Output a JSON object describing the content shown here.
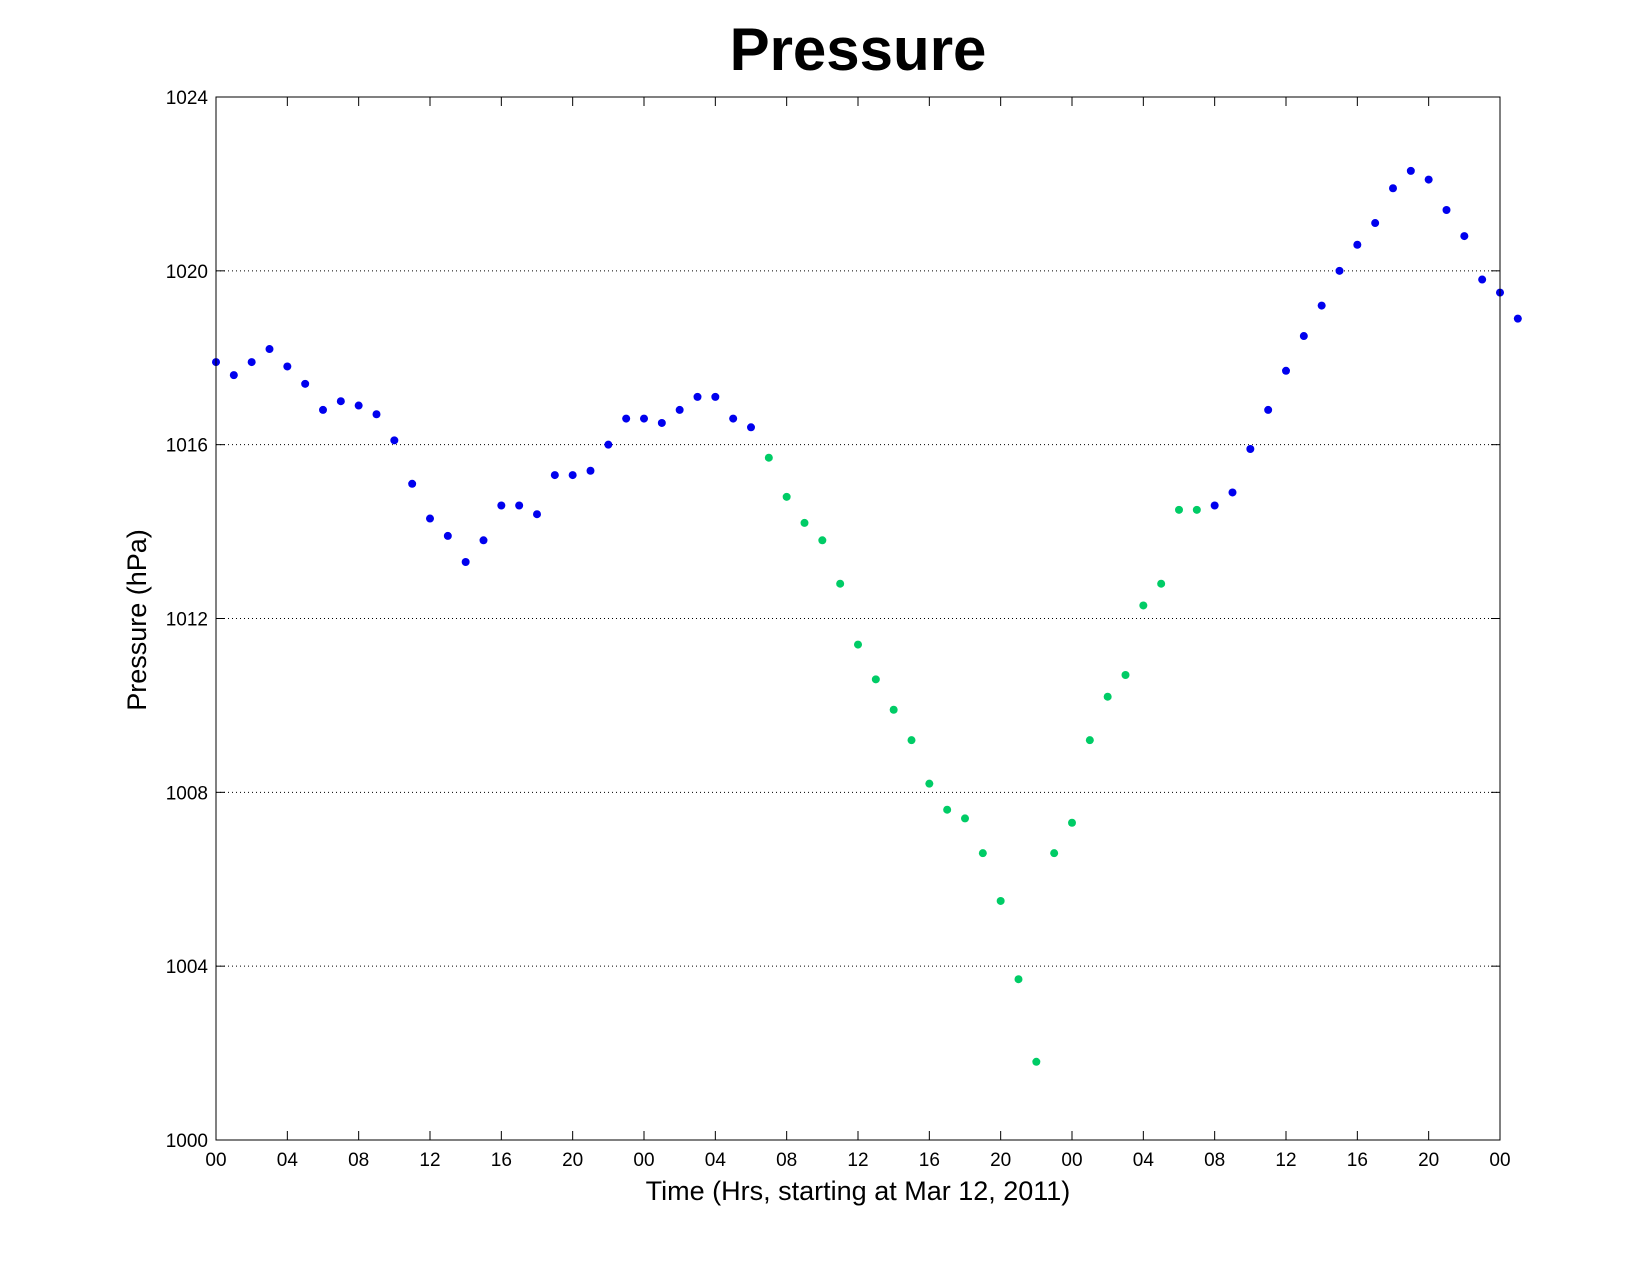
{
  "chart_data": {
    "type": "scatter",
    "title": "Pressure",
    "xlabel": "Time (Hrs, starting at Mar 12, 2011)",
    "ylabel": "Pressure (hPa)",
    "xlim": [
      0,
      72
    ],
    "ylim": [
      1000,
      1024
    ],
    "x_ticks": [
      0,
      4,
      8,
      12,
      16,
      20,
      24,
      28,
      32,
      36,
      40,
      44,
      48,
      52,
      56,
      60,
      64,
      68,
      72
    ],
    "x_tick_labels": [
      "00",
      "04",
      "08",
      "12",
      "16",
      "20",
      "00",
      "04",
      "08",
      "12",
      "16",
      "20",
      "00",
      "04",
      "08",
      "12",
      "16",
      "20",
      "00"
    ],
    "y_ticks": [
      1000,
      1004,
      1008,
      1012,
      1016,
      1020,
      1024
    ],
    "y_tick_labels": [
      "1000",
      "1004",
      "1008",
      "1012",
      "1016",
      "1020",
      "1024"
    ],
    "grid": "horizontal dotted",
    "colors": {
      "series_1": "#0000ee",
      "series_2": "#00cc66"
    },
    "series": [
      {
        "color": "#0000ee",
        "points": [
          [
            0,
            1017.9
          ],
          [
            1,
            1017.6
          ],
          [
            2,
            1017.9
          ],
          [
            3,
            1018.2
          ],
          [
            4,
            1017.8
          ],
          [
            5,
            1017.4
          ],
          [
            6,
            1016.8
          ],
          [
            7,
            1017.0
          ],
          [
            8,
            1016.9
          ],
          [
            9,
            1016.7
          ],
          [
            10,
            1016.1
          ],
          [
            11,
            1015.1
          ],
          [
            12,
            1014.3
          ],
          [
            13,
            1013.9
          ],
          [
            14,
            1013.3
          ],
          [
            15,
            1013.8
          ],
          [
            16,
            1014.6
          ],
          [
            17,
            1014.6
          ],
          [
            18,
            1014.4
          ],
          [
            19,
            1015.3
          ],
          [
            20,
            1015.3
          ],
          [
            21,
            1015.4
          ],
          [
            22,
            1016.0
          ],
          [
            23,
            1016.6
          ],
          [
            24,
            1016.6
          ],
          [
            25,
            1016.5
          ],
          [
            26,
            1016.8
          ],
          [
            27,
            1017.1
          ],
          [
            28,
            1017.1
          ],
          [
            29,
            1016.6
          ],
          [
            30,
            1016.4
          ],
          [
            56,
            1014.6
          ],
          [
            57,
            1014.9
          ],
          [
            58,
            1015.9
          ],
          [
            59,
            1016.8
          ],
          [
            60,
            1017.7
          ],
          [
            61,
            1018.5
          ],
          [
            62,
            1019.2
          ],
          [
            63,
            1020.0
          ],
          [
            64,
            1020.6
          ],
          [
            65,
            1021.1
          ],
          [
            66,
            1021.9
          ],
          [
            67,
            1022.3
          ],
          [
            68,
            1022.1
          ],
          [
            69,
            1021.4
          ],
          [
            70,
            1020.8
          ],
          [
            71,
            1019.8
          ],
          [
            72,
            1019.5
          ],
          [
            73,
            1018.9
          ]
        ]
      },
      {
        "color": "#00cc66",
        "points": [
          [
            31,
            1015.7
          ],
          [
            32,
            1014.8
          ],
          [
            33,
            1014.2
          ],
          [
            34,
            1013.8
          ],
          [
            35,
            1012.8
          ],
          [
            36,
            1011.4
          ],
          [
            37,
            1010.6
          ],
          [
            38,
            1009.9
          ],
          [
            39,
            1009.2
          ],
          [
            40,
            1008.2
          ],
          [
            41,
            1007.6
          ],
          [
            42,
            1007.4
          ],
          [
            43,
            1006.6
          ],
          [
            44,
            1005.5
          ],
          [
            45,
            1003.7
          ],
          [
            46,
            1001.8
          ],
          [
            47,
            1006.6
          ],
          [
            48,
            1007.3
          ],
          [
            49,
            1009.2
          ],
          [
            50,
            1010.2
          ],
          [
            51,
            1010.7
          ],
          [
            52,
            1012.3
          ],
          [
            53,
            1012.8
          ],
          [
            54,
            1014.5
          ],
          [
            55,
            1014.5
          ]
        ]
      }
    ]
  }
}
